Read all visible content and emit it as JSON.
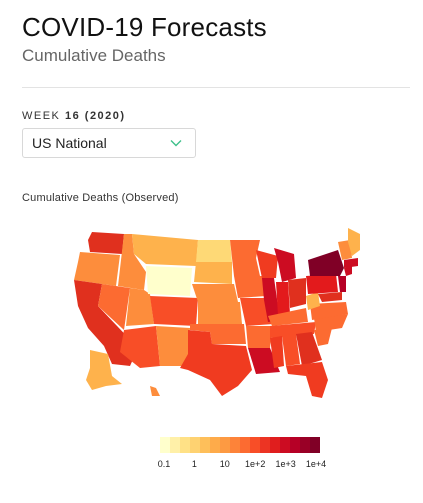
{
  "header": {
    "title": "COVID-19 Forecasts",
    "subtitle": "Cumulative Deaths"
  },
  "week": {
    "prefix": "WEEK",
    "number": "16",
    "year": "(2020)"
  },
  "region_select": {
    "value": "US National",
    "icon": "chevron-down-icon"
  },
  "map": {
    "label": "Cumulative Deaths (Observed)",
    "accent_color": "#3ec08a"
  },
  "legend": {
    "ticks": [
      "0.1",
      "1",
      "10",
      "1e+2",
      "1e+3",
      "1e+4"
    ],
    "colors": [
      "#ffffcc",
      "#fff0a8",
      "#ffe186",
      "#fed271",
      "#febf5a",
      "#feab4a",
      "#fd9a42",
      "#fd8339",
      "#fc6b31",
      "#f84e27",
      "#ec3423",
      "#e01e1e",
      "#cc0c22",
      "#b60026",
      "#990026",
      "#800026"
    ]
  }
}
